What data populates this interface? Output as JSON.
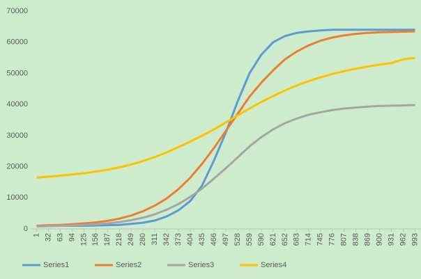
{
  "chart_data": {
    "type": "line",
    "categories": [
      "1",
      "32",
      "63",
      "94",
      "125",
      "156",
      "187",
      "218",
      "249",
      "280",
      "311",
      "342",
      "373",
      "404",
      "435",
      "466",
      "497",
      "528",
      "559",
      "590",
      "621",
      "652",
      "683",
      "714",
      "745",
      "776",
      "807",
      "838",
      "869",
      "900",
      "931",
      "962",
      "993"
    ],
    "series": [
      {
        "name": "Series1",
        "color": "#5b9bd5",
        "values": [
          1000,
          1000,
          1000,
          1000,
          1000,
          1100,
          1200,
          1300,
          1600,
          2000,
          2700,
          4000,
          6000,
          9000,
          14000,
          22000,
          31000,
          41000,
          50000,
          56000,
          60000,
          62000,
          63000,
          63500,
          63800,
          64000,
          64000,
          64000,
          64000,
          64000,
          64000,
          64000,
          64000
        ]
      },
      {
        "name": "Series2",
        "color": "#ed7d31",
        "values": [
          1000,
          1200,
          1300,
          1500,
          1800,
          2100,
          2600,
          3300,
          4300,
          5700,
          7500,
          9800,
          12800,
          16500,
          21000,
          26000,
          31500,
          37000,
          42500,
          47000,
          51000,
          54500,
          57000,
          59000,
          60500,
          61500,
          62200,
          62700,
          63000,
          63200,
          63300,
          63400,
          63500
        ]
      },
      {
        "name": "Series3",
        "color": "#a5a5a5",
        "values": [
          800,
          900,
          1000,
          1100,
          1300,
          1500,
          1800,
          2200,
          2800,
          3600,
          4700,
          6200,
          8000,
          10300,
          13000,
          16200,
          19500,
          23000,
          26500,
          29500,
          32000,
          34000,
          35500,
          36700,
          37500,
          38200,
          38700,
          39000,
          39300,
          39500,
          39600,
          39700,
          39800
        ]
      },
      {
        "name": "Series4",
        "color": "#ffc000",
        "values": [
          16500,
          16800,
          17100,
          17500,
          17900,
          18400,
          19000,
          19800,
          20700,
          21800,
          23100,
          24600,
          26300,
          28100,
          30000,
          32000,
          34200,
          36500,
          38700,
          40800,
          42700,
          44500,
          46100,
          47500,
          48700,
          49800,
          50700,
          51500,
          52200,
          52800,
          53300,
          54500,
          55000
        ]
      }
    ],
    "ylim": [
      0,
      70000
    ],
    "yticks": [
      0,
      10000,
      20000,
      30000,
      40000,
      50000,
      60000,
      70000
    ],
    "grid": false,
    "legend": "bottom"
  }
}
